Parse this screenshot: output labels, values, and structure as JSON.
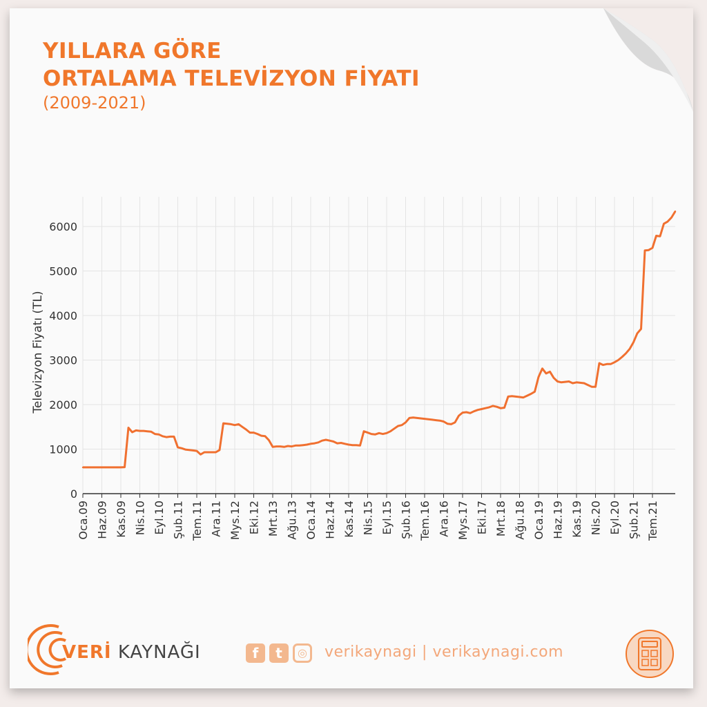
{
  "header": {
    "title_line1": "YILLARA GÖRE",
    "title_line2": "ORTALAMA TELEVİZYON FİYATI",
    "subtitle": "(2009-2021)"
  },
  "footer": {
    "brand_veri": "VERİ",
    "brand_kaynagi": "KAYNAĞI",
    "facebook_icon": "f",
    "twitter_icon": "t",
    "instagram_icon": "◎",
    "handle": "verikaynagi | verikaynagi.com"
  },
  "colors": {
    "accent": "#f0772b",
    "line": "#f07030",
    "grid": "#e4e4e4",
    "background": "#fafafa"
  },
  "chart_data": {
    "type": "line",
    "title": "YILLARA GÖRE ORTALAMA TELEVİZYON FİYATI",
    "subtitle": "(2009-2021)",
    "xlabel": "",
    "ylabel": "Televizyon Fiyatı (TL)",
    "ylim": [
      0,
      6400
    ],
    "yticks": [
      0,
      1000,
      2000,
      3000,
      4000,
      5000,
      6000
    ],
    "x_tick_labels": [
      "Oca.09",
      "Haz.09",
      "Kas.09",
      "Nis.10",
      "Eyl.10",
      "Şub.11",
      "Tem.11",
      "Ara.11",
      "Mys.12",
      "Eki.12",
      "Mrt.13",
      "Ağu.13",
      "Oca.14",
      "Haz.14",
      "Kas.14",
      "Nis.15",
      "Eyl.15",
      "Şub.16",
      "Tem.16",
      "Ara.16",
      "Mys.17",
      "Eki.17",
      "Mrt.18",
      "Ağu.18",
      "Oca.19",
      "Haz.19",
      "Kas.19",
      "Nis.20",
      "Eyl.20",
      "Şub.21",
      "Tem.21"
    ],
    "grid": true,
    "series": [
      {
        "values": [
          590,
          590,
          590,
          590,
          590,
          590,
          590,
          590,
          590,
          590,
          590,
          595,
          1480,
          1380,
          1420,
          1410,
          1410,
          1400,
          1390,
          1340,
          1330,
          1290,
          1270,
          1280,
          1280,
          1040,
          1020,
          990,
          980,
          970,
          960,
          880,
          930,
          930,
          930,
          930,
          980,
          1580,
          1570,
          1560,
          1540,
          1560,
          1500,
          1440,
          1370,
          1370,
          1340,
          1300,
          1290,
          1200,
          1050,
          1060,
          1060,
          1050,
          1070,
          1060,
          1080,
          1080,
          1090,
          1100,
          1120,
          1130,
          1150,
          1190,
          1210,
          1190,
          1170,
          1130,
          1140,
          1120,
          1100,
          1090,
          1090,
          1080,
          1400,
          1370,
          1340,
          1330,
          1360,
          1340,
          1360,
          1400,
          1460,
          1520,
          1540,
          1600,
          1700,
          1710,
          1700,
          1690,
          1680,
          1670,
          1660,
          1650,
          1640,
          1620,
          1570,
          1560,
          1600,
          1750,
          1820,
          1830,
          1810,
          1850,
          1880,
          1900,
          1920,
          1940,
          1970,
          1950,
          1920,
          1930,
          2180,
          2190,
          2180,
          2170,
          2160,
          2200,
          2240,
          2290,
          2620,
          2810,
          2700,
          2740,
          2600,
          2520,
          2500,
          2510,
          2520,
          2480,
          2500,
          2490,
          2480,
          2440,
          2400,
          2400,
          2930,
          2890,
          2910,
          2910,
          2950,
          3000,
          3070,
          3150,
          3250,
          3400,
          3600,
          3700,
          5460,
          5470,
          5520,
          5790,
          5780,
          6060,
          6110,
          6200,
          6340
        ]
      }
    ]
  }
}
